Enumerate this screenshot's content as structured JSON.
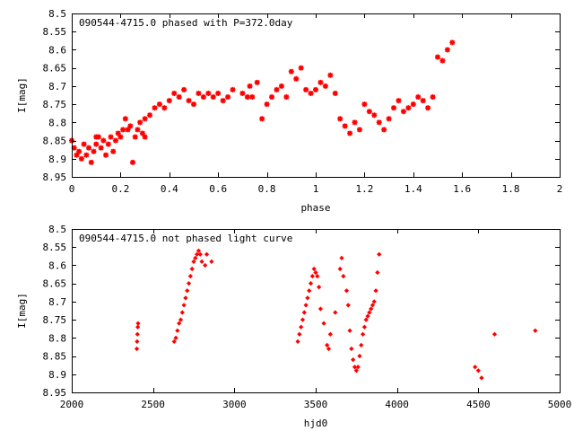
{
  "colors": {
    "series": "#ff0000",
    "axis": "#000000",
    "background": "#ffffff"
  },
  "chart_data": [
    {
      "type": "scatter",
      "title": "090544-4715.0 phased with P=372.0day",
      "xlabel": "phase",
      "ylabel": "I[mag]",
      "xlim": [
        0,
        2
      ],
      "ylim": [
        8.95,
        8.5
      ],
      "y_inverted": true,
      "xticks": [
        0,
        0.2,
        0.4,
        0.6,
        0.8,
        1,
        1.2,
        1.4,
        1.6,
        1.8,
        2
      ],
      "yticks": [
        8.5,
        8.55,
        8.6,
        8.65,
        8.7,
        8.75,
        8.8,
        8.85,
        8.9,
        8.95
      ],
      "xtick_labels": [
        "0",
        "0.2",
        "0.4",
        "0.6",
        "0.8",
        "1",
        "1.2",
        "1.4",
        "1.6",
        "1.8",
        "2"
      ],
      "ytick_labels": [
        "8.5",
        "8.55",
        "8.6",
        "8.65",
        "8.7",
        "8.75",
        "8.8",
        "8.85",
        "8.9",
        "8.95"
      ],
      "grid": false,
      "marker": "star",
      "points": [
        [
          0.0,
          8.85
        ],
        [
          0.01,
          8.87
        ],
        [
          0.02,
          8.89
        ],
        [
          0.03,
          8.88
        ],
        [
          0.04,
          8.9
        ],
        [
          0.05,
          8.86
        ],
        [
          0.06,
          8.89
        ],
        [
          0.07,
          8.87
        ],
        [
          0.08,
          8.91
        ],
        [
          0.09,
          8.88
        ],
        [
          0.1,
          8.84
        ],
        [
          0.1,
          8.86
        ],
        [
          0.11,
          8.84
        ],
        [
          0.12,
          8.87
        ],
        [
          0.13,
          8.85
        ],
        [
          0.14,
          8.89
        ],
        [
          0.15,
          8.86
        ],
        [
          0.16,
          8.84
        ],
        [
          0.17,
          8.88
        ],
        [
          0.18,
          8.85
        ],
        [
          0.19,
          8.83
        ],
        [
          0.2,
          8.84
        ],
        [
          0.21,
          8.82
        ],
        [
          0.22,
          8.79
        ],
        [
          0.23,
          8.82
        ],
        [
          0.24,
          8.81
        ],
        [
          0.25,
          8.91
        ],
        [
          0.26,
          8.84
        ],
        [
          0.27,
          8.82
        ],
        [
          0.28,
          8.8
        ],
        [
          0.29,
          8.83
        ],
        [
          0.3,
          8.84
        ],
        [
          0.3,
          8.79
        ],
        [
          0.32,
          8.78
        ],
        [
          0.34,
          8.76
        ],
        [
          0.36,
          8.75
        ],
        [
          0.38,
          8.76
        ],
        [
          0.4,
          8.74
        ],
        [
          0.42,
          8.72
        ],
        [
          0.44,
          8.73
        ],
        [
          0.46,
          8.71
        ],
        [
          0.48,
          8.74
        ],
        [
          0.5,
          8.75
        ],
        [
          0.52,
          8.72
        ],
        [
          0.54,
          8.73
        ],
        [
          0.56,
          8.72
        ],
        [
          0.58,
          8.73
        ],
        [
          0.6,
          8.72
        ],
        [
          0.62,
          8.74
        ],
        [
          0.64,
          8.73
        ],
        [
          0.66,
          8.71
        ],
        [
          0.7,
          8.72
        ],
        [
          0.72,
          8.73
        ],
        [
          0.73,
          8.7
        ],
        [
          0.74,
          8.73
        ],
        [
          0.76,
          8.69
        ],
        [
          0.78,
          8.79
        ],
        [
          0.8,
          8.75
        ],
        [
          0.82,
          8.73
        ],
        [
          0.84,
          8.71
        ],
        [
          0.86,
          8.7
        ],
        [
          0.88,
          8.73
        ],
        [
          0.9,
          8.66
        ],
        [
          0.92,
          8.68
        ],
        [
          0.94,
          8.65
        ],
        [
          0.96,
          8.71
        ],
        [
          0.98,
          8.72
        ],
        [
          1.0,
          8.71
        ],
        [
          1.02,
          8.69
        ],
        [
          1.04,
          8.7
        ],
        [
          1.06,
          8.67
        ],
        [
          1.08,
          8.72
        ],
        [
          1.1,
          8.79
        ],
        [
          1.12,
          8.81
        ],
        [
          1.14,
          8.83
        ],
        [
          1.16,
          8.8
        ],
        [
          1.18,
          8.82
        ],
        [
          1.2,
          8.75
        ],
        [
          1.22,
          8.77
        ],
        [
          1.24,
          8.78
        ],
        [
          1.26,
          8.8
        ],
        [
          1.28,
          8.82
        ],
        [
          1.3,
          8.79
        ],
        [
          1.32,
          8.76
        ],
        [
          1.34,
          8.74
        ],
        [
          1.36,
          8.77
        ],
        [
          1.38,
          8.76
        ],
        [
          1.4,
          8.75
        ],
        [
          1.42,
          8.73
        ],
        [
          1.44,
          8.74
        ],
        [
          1.46,
          8.76
        ],
        [
          1.48,
          8.73
        ],
        [
          1.5,
          8.62
        ],
        [
          1.52,
          8.63
        ],
        [
          1.54,
          8.6
        ],
        [
          1.56,
          8.58
        ]
      ]
    },
    {
      "type": "scatter",
      "title": "090544-4715.0 not phased light curve",
      "xlabel": "hjd0",
      "ylabel": "I[mag]",
      "xlim": [
        2000,
        5000
      ],
      "ylim": [
        8.95,
        8.5
      ],
      "y_inverted": true,
      "xticks": [
        2000,
        2500,
        3000,
        3500,
        4000,
        4500,
        5000
      ],
      "yticks": [
        8.5,
        8.55,
        8.6,
        8.65,
        8.7,
        8.75,
        8.8,
        8.85,
        8.9,
        8.95
      ],
      "xtick_labels": [
        "2000",
        "2500",
        "3000",
        "3500",
        "4000",
        "4500",
        "5000"
      ],
      "ytick_labels": [
        "8.5",
        "8.55",
        "8.6",
        "8.65",
        "8.7",
        "8.75",
        "8.8",
        "8.85",
        "8.9",
        "8.95"
      ],
      "grid": false,
      "marker": "diamond",
      "points": [
        [
          2400,
          8.83
        ],
        [
          2402,
          8.81
        ],
        [
          2404,
          8.79
        ],
        [
          2406,
          8.77
        ],
        [
          2408,
          8.76
        ],
        [
          2630,
          8.81
        ],
        [
          2640,
          8.8
        ],
        [
          2650,
          8.78
        ],
        [
          2660,
          8.76
        ],
        [
          2670,
          8.75
        ],
        [
          2680,
          8.73
        ],
        [
          2690,
          8.71
        ],
        [
          2700,
          8.69
        ],
        [
          2710,
          8.67
        ],
        [
          2720,
          8.65
        ],
        [
          2730,
          8.63
        ],
        [
          2740,
          8.61
        ],
        [
          2750,
          8.59
        ],
        [
          2760,
          8.58
        ],
        [
          2770,
          8.57
        ],
        [
          2780,
          8.56
        ],
        [
          2790,
          8.57
        ],
        [
          2800,
          8.59
        ],
        [
          2820,
          8.6
        ],
        [
          2830,
          8.57
        ],
        [
          2860,
          8.59
        ],
        [
          3390,
          8.81
        ],
        [
          3400,
          8.79
        ],
        [
          3410,
          8.77
        ],
        [
          3420,
          8.75
        ],
        [
          3430,
          8.73
        ],
        [
          3440,
          8.71
        ],
        [
          3450,
          8.69
        ],
        [
          3460,
          8.67
        ],
        [
          3470,
          8.65
        ],
        [
          3480,
          8.63
        ],
        [
          3490,
          8.61
        ],
        [
          3500,
          8.62
        ],
        [
          3510,
          8.63
        ],
        [
          3520,
          8.66
        ],
        [
          3530,
          8.72
        ],
        [
          3550,
          8.76
        ],
        [
          3570,
          8.82
        ],
        [
          3580,
          8.83
        ],
        [
          3590,
          8.79
        ],
        [
          3620,
          8.73
        ],
        [
          3650,
          8.61
        ],
        [
          3660,
          8.58
        ],
        [
          3670,
          8.63
        ],
        [
          3690,
          8.67
        ],
        [
          3700,
          8.71
        ],
        [
          3710,
          8.78
        ],
        [
          3720,
          8.83
        ],
        [
          3730,
          8.86
        ],
        [
          3740,
          8.88
        ],
        [
          3750,
          8.89
        ],
        [
          3760,
          8.88
        ],
        [
          3770,
          8.85
        ],
        [
          3780,
          8.82
        ],
        [
          3790,
          8.79
        ],
        [
          3800,
          8.77
        ],
        [
          3810,
          8.75
        ],
        [
          3820,
          8.74
        ],
        [
          3830,
          8.73
        ],
        [
          3840,
          8.72
        ],
        [
          3850,
          8.71
        ],
        [
          3860,
          8.7
        ],
        [
          3870,
          8.67
        ],
        [
          3880,
          8.62
        ],
        [
          3890,
          8.57
        ],
        [
          4480,
          8.88
        ],
        [
          4500,
          8.89
        ],
        [
          4520,
          8.91
        ],
        [
          4600,
          8.79
        ],
        [
          4850,
          8.78
        ]
      ]
    }
  ]
}
